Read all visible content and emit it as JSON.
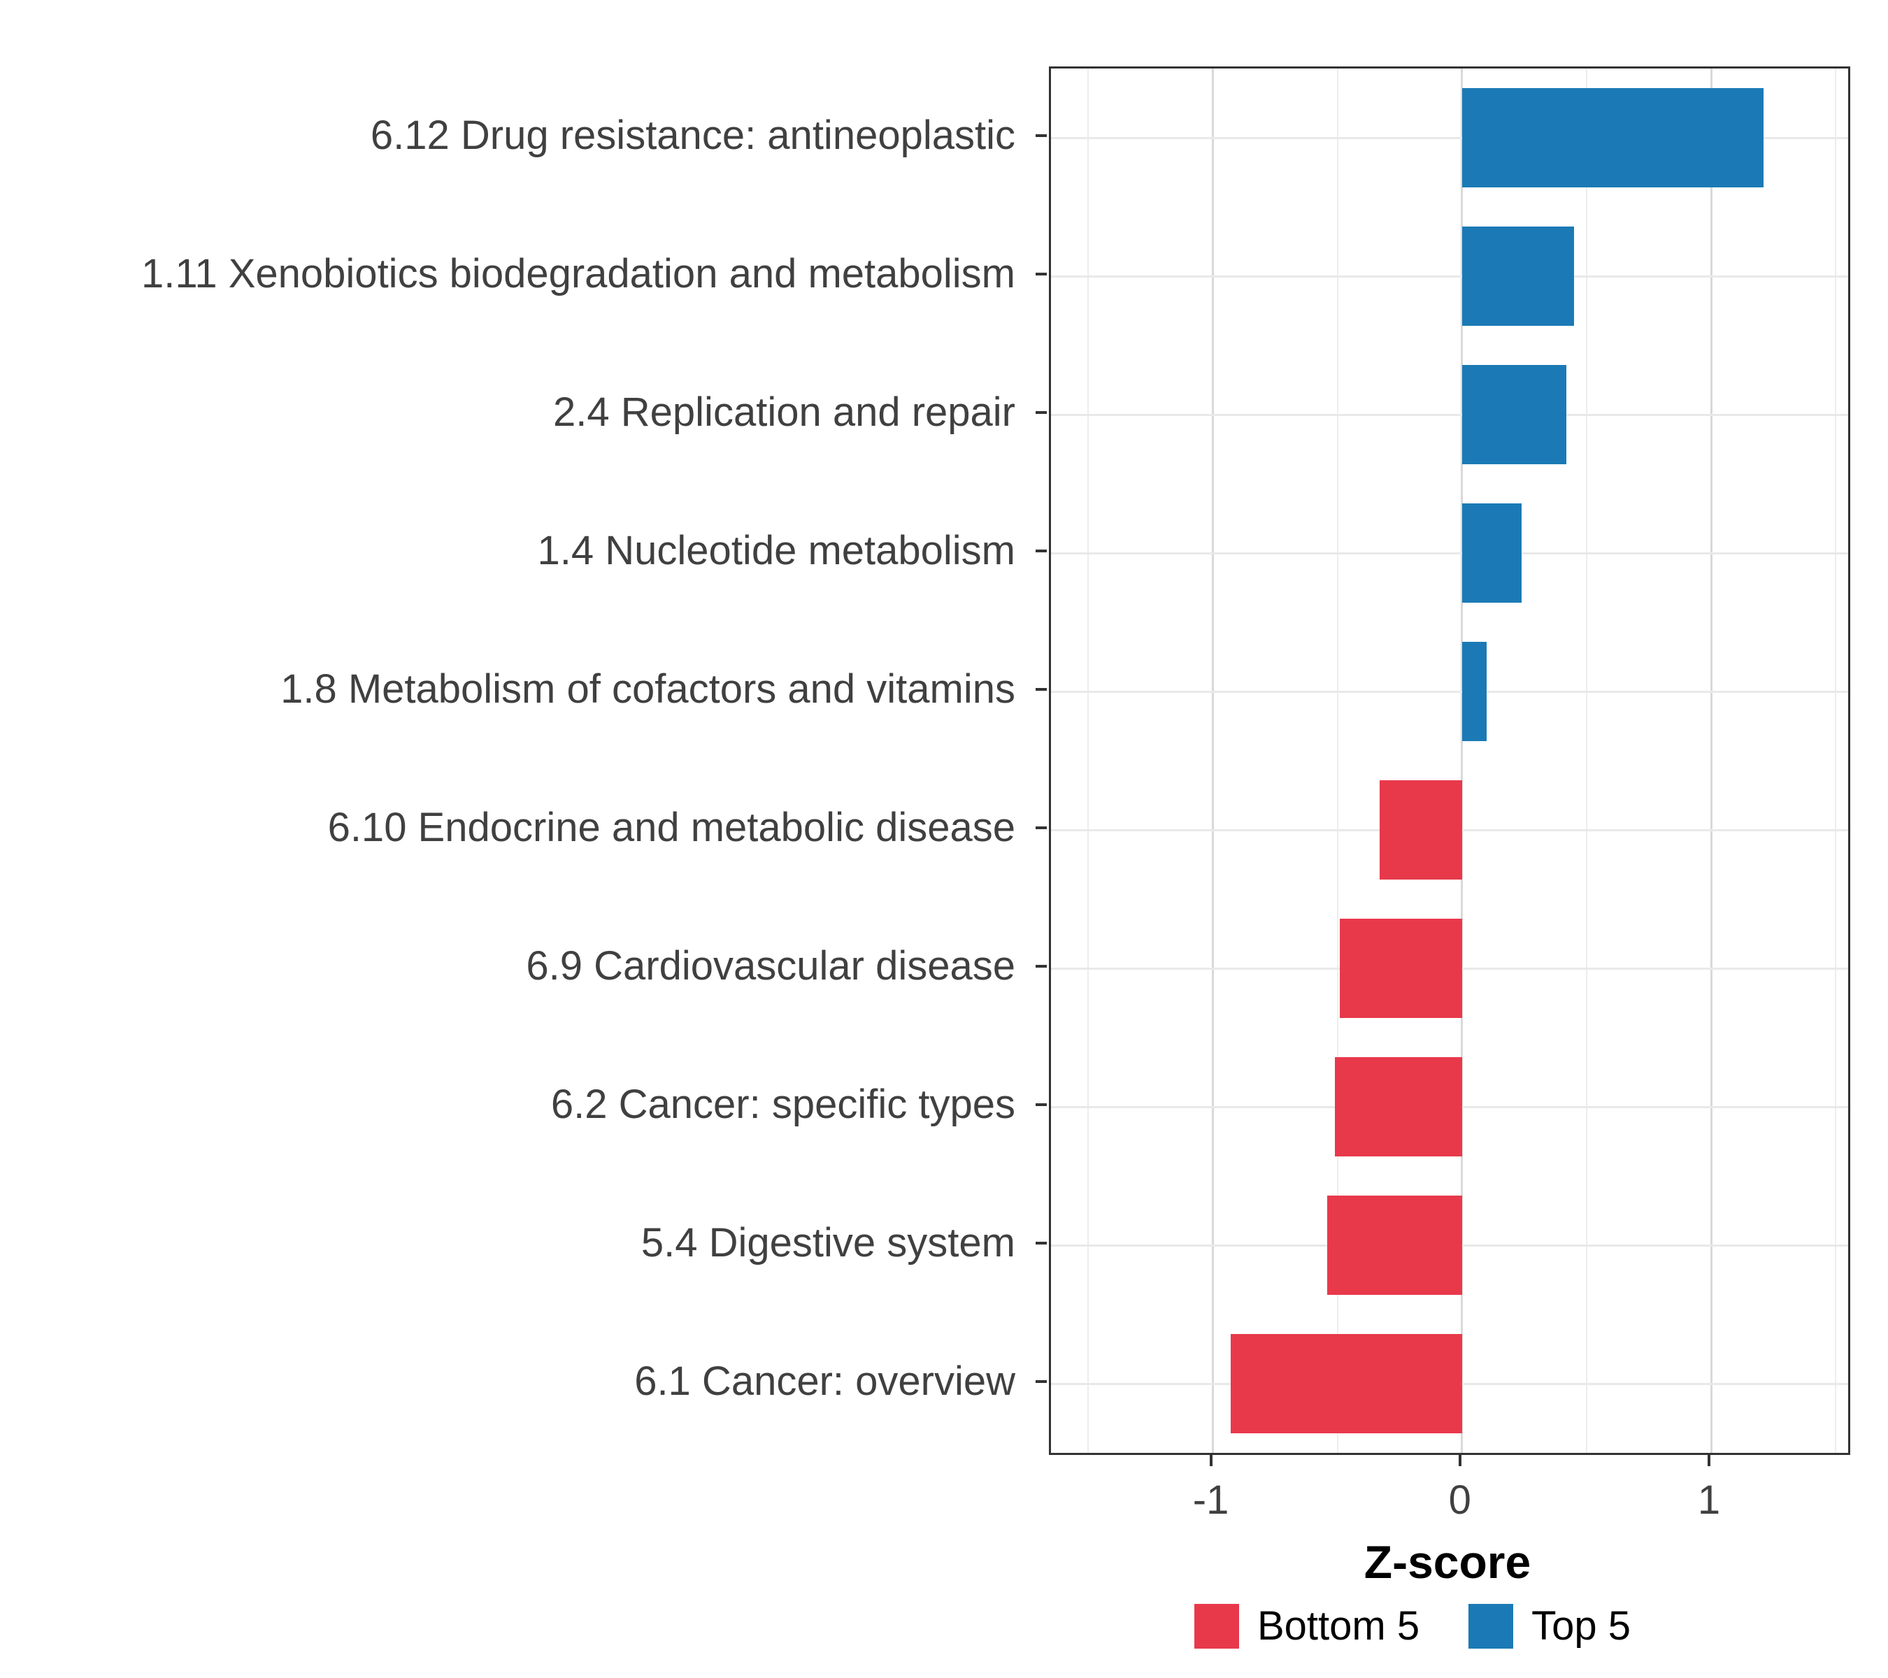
{
  "chart_data": {
    "type": "bar",
    "orientation": "horizontal",
    "title": "",
    "xlabel": "Z-score",
    "ylabel": "",
    "xlim": [
      -1.65,
      1.55
    ],
    "grid": true,
    "x_ticks": [
      {
        "value": -1,
        "label": "-1"
      },
      {
        "value": 0,
        "label": "0"
      },
      {
        "value": 1,
        "label": "1"
      }
    ],
    "x_minor_ticks": [
      -1.5,
      -0.5,
      0.5,
      1.5
    ],
    "categories": [
      "6.12 Drug resistance: antineoplastic",
      "1.11 Xenobiotics biodegradation and metabolism",
      "2.4 Replication and repair",
      "1.4 Nucleotide metabolism",
      "1.8 Metabolism of cofactors and vitamins",
      "6.10 Endocrine and metabolic disease",
      "6.9 Cardiovascular disease",
      "6.2 Cancer: specific types",
      "5.4 Digestive system",
      "6.1 Cancer: overview"
    ],
    "values": [
      1.21,
      0.45,
      0.42,
      0.24,
      0.1,
      -0.33,
      -0.49,
      -0.51,
      -0.54,
      -0.93
    ],
    "groups": [
      "Top 5",
      "Top 5",
      "Top 5",
      "Top 5",
      "Top 5",
      "Bottom 5",
      "Bottom 5",
      "Bottom 5",
      "Bottom 5",
      "Bottom 5"
    ],
    "series_colors": {
      "Top 5": "#1B7AB5",
      "Bottom 5": "#E8394B"
    },
    "legend": {
      "position": "bottom",
      "entries": [
        {
          "label": "Bottom 5",
          "color": "#E8394B"
        },
        {
          "label": "Top 5",
          "color": "#1B7AB5"
        }
      ]
    }
  }
}
